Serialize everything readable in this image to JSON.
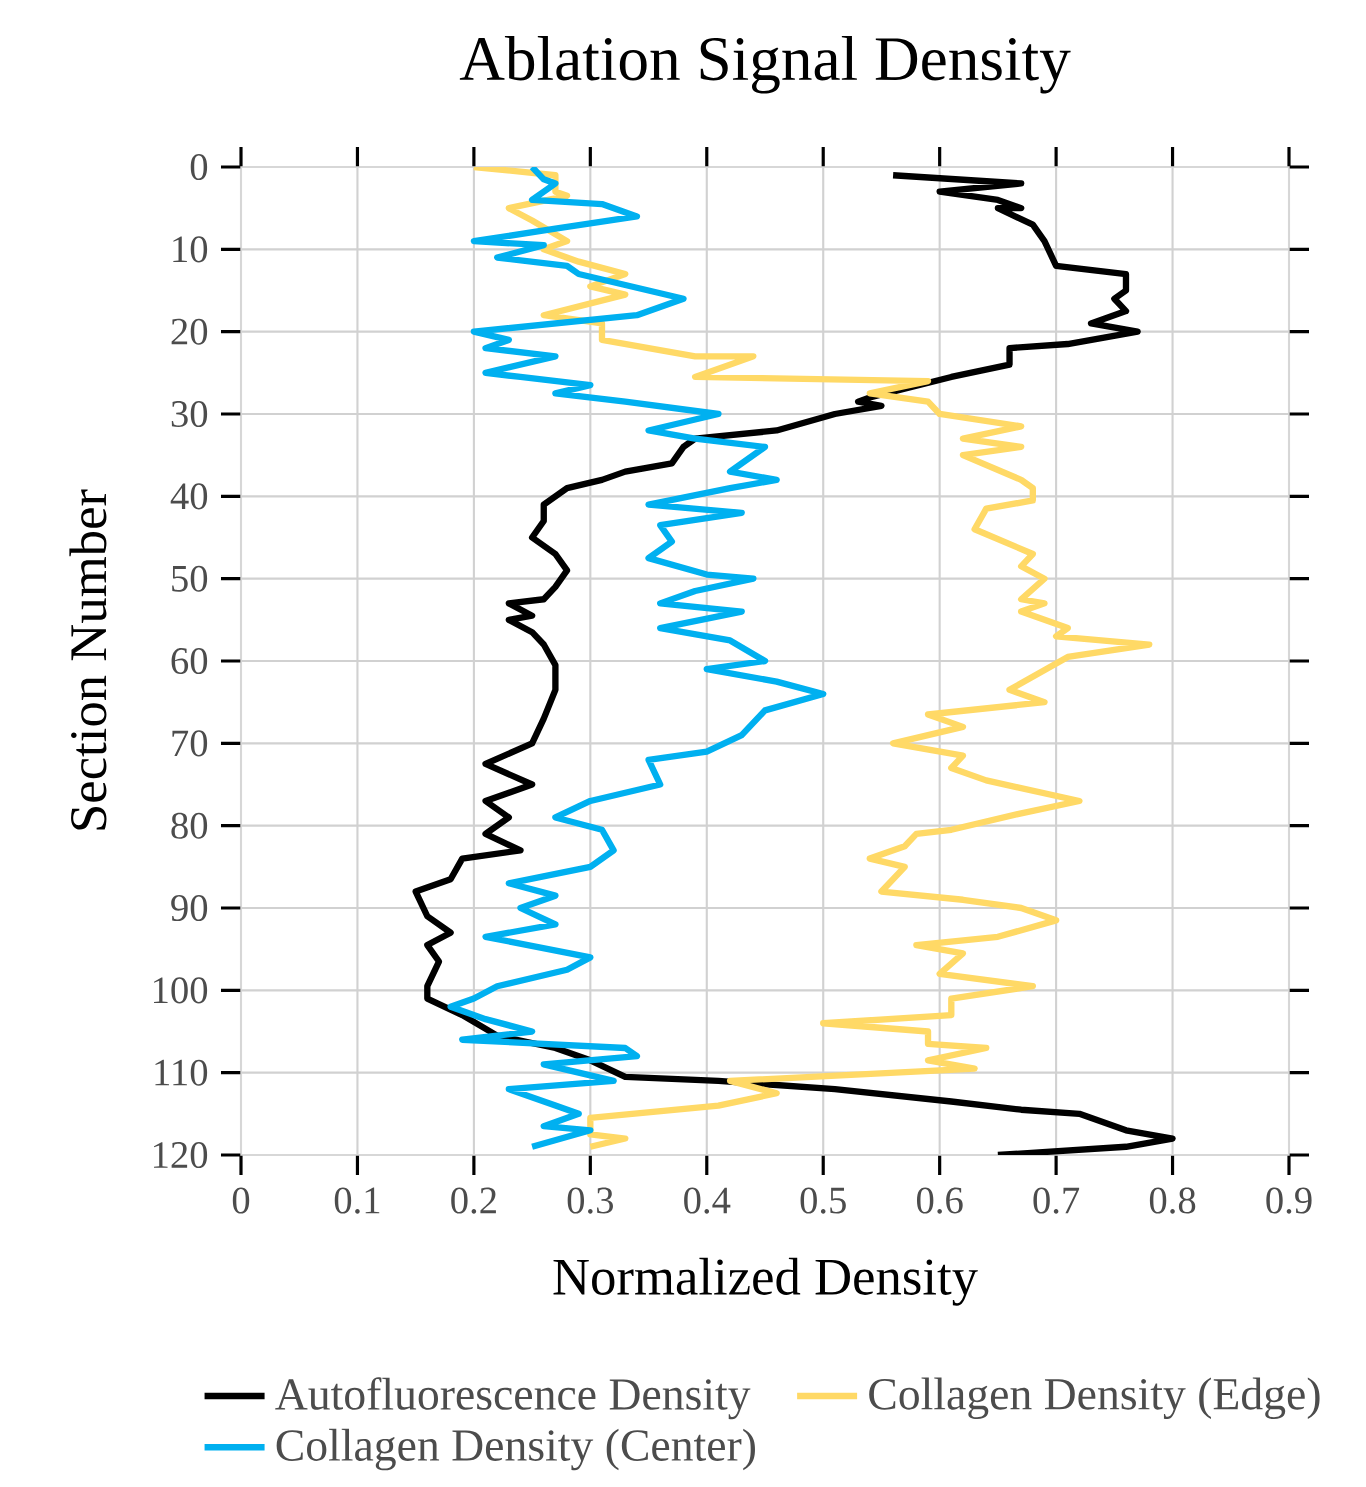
{
  "chart_data": {
    "type": "line",
    "title": "Ablation Signal Density",
    "xlabel": "Normalized Density",
    "ylabel": "Section Number",
    "xlim": [
      0,
      0.9
    ],
    "xticks": [
      0,
      0.1,
      0.2,
      0.3,
      0.4,
      0.5,
      0.6,
      0.7,
      0.8,
      0.9
    ],
    "ylim": [
      120,
      0
    ],
    "yticks": [
      0,
      10,
      20,
      30,
      40,
      50,
      60,
      70,
      80,
      90,
      100,
      110,
      120
    ],
    "grid": true,
    "legend": "bottom",
    "series": [
      {
        "name": "Autofluorescence Density",
        "color": "#000000",
        "x": [
          0.56,
          0.67,
          0.6,
          0.65,
          0.67,
          0.65,
          0.68,
          0.69,
          0.7,
          0.76,
          0.76,
          0.75,
          0.76,
          0.73,
          0.77,
          0.71,
          0.66,
          0.66,
          0.61,
          0.54,
          0.53,
          0.55,
          0.51,
          0.46,
          0.39,
          0.38,
          0.37,
          0.33,
          0.31,
          0.28,
          0.26,
          0.26,
          0.25,
          0.27,
          0.28,
          0.27,
          0.26,
          0.23,
          0.25,
          0.23,
          0.25,
          0.26,
          0.27,
          0.27,
          0.26,
          0.25,
          0.21,
          0.25,
          0.21,
          0.23,
          0.21,
          0.24,
          0.19,
          0.18,
          0.15,
          0.16,
          0.18,
          0.16,
          0.17,
          0.16,
          0.16,
          0.19,
          0.22,
          0.27,
          0.3,
          0.33,
          0.41,
          0.51,
          0.61,
          0.67,
          0.72,
          0.76,
          0.8,
          0.76,
          0.65
        ],
        "values": [
          1,
          2,
          3,
          4,
          5,
          5,
          7,
          9,
          12,
          13,
          15,
          16,
          17.5,
          19,
          20,
          21.5,
          22,
          24,
          25.5,
          28,
          28.5,
          29,
          30,
          32,
          33,
          34,
          36,
          37,
          38,
          39,
          41,
          43,
          45,
          47,
          49,
          51,
          52.5,
          53,
          54.5,
          55,
          56.5,
          58,
          60.5,
          63.5,
          67,
          70,
          72.5,
          75,
          77,
          79,
          81,
          83,
          84,
          86.5,
          88,
          91,
          93,
          94.5,
          96.5,
          99.5,
          101,
          103,
          105.5,
          107,
          108.5,
          110.5,
          111,
          112,
          113.5,
          114.5,
          115,
          117,
          118,
          119,
          120
        ]
      },
      {
        "name": "Collagen Density (Edge)",
        "color": "#ffd966",
        "x": [
          0.2,
          0.27,
          0.27,
          0.28,
          0.23,
          0.25,
          0.28,
          0.26,
          0.29,
          0.33,
          0.3,
          0.33,
          0.26,
          0.31,
          0.31,
          0.39,
          0.44,
          0.39,
          0.59,
          0.54,
          0.59,
          0.6,
          0.67,
          0.62,
          0.67,
          0.62,
          0.67,
          0.68,
          0.68,
          0.64,
          0.63,
          0.68,
          0.67,
          0.69,
          0.67,
          0.69,
          0.67,
          0.71,
          0.7,
          0.78,
          0.71,
          0.66,
          0.69,
          0.59,
          0.62,
          0.56,
          0.62,
          0.61,
          0.64,
          0.72,
          0.67,
          0.61,
          0.58,
          0.57,
          0.54,
          0.57,
          0.55,
          0.62,
          0.67,
          0.7,
          0.65,
          0.58,
          0.62,
          0.6,
          0.68,
          0.61,
          0.61,
          0.5,
          0.59,
          0.59,
          0.64,
          0.59,
          0.63,
          0.42,
          0.46,
          0.41,
          0.3,
          0.3,
          0.33,
          0.3
        ],
        "values": [
          0,
          1,
          3,
          3.5,
          5,
          6.5,
          9,
          10,
          11.5,
          13,
          14.5,
          15.5,
          18,
          19,
          21,
          23,
          23,
          25.5,
          26,
          27.5,
          28.5,
          30,
          31.5,
          33,
          34,
          35,
          38,
          39,
          40.5,
          41.5,
          44,
          47,
          48.5,
          50,
          52.5,
          53,
          54,
          56,
          57,
          58,
          59.5,
          63.5,
          65,
          66.5,
          68,
          70,
          71.5,
          73,
          74.5,
          77,
          78.5,
          80.5,
          81,
          82.5,
          84,
          85,
          88,
          89,
          90,
          91.5,
          93.5,
          94.5,
          95.5,
          98,
          99.5,
          101,
          103,
          104,
          105,
          106.5,
          107,
          108.5,
          109.5,
          111,
          112.5,
          114,
          115.5,
          117.5,
          118,
          119
        ]
      },
      {
        "name": "Collagen Density (Center)",
        "color": "#00b0f0",
        "x": [
          0.25,
          0.26,
          0.27,
          0.25,
          0.31,
          0.34,
          0.27,
          0.2,
          0.26,
          0.22,
          0.28,
          0.29,
          0.35,
          0.38,
          0.34,
          0.2,
          0.23,
          0.21,
          0.27,
          0.21,
          0.24,
          0.3,
          0.27,
          0.33,
          0.41,
          0.35,
          0.39,
          0.45,
          0.42,
          0.46,
          0.42,
          0.35,
          0.43,
          0.36,
          0.37,
          0.35,
          0.4,
          0.44,
          0.39,
          0.36,
          0.43,
          0.36,
          0.42,
          0.45,
          0.4,
          0.46,
          0.5,
          0.45,
          0.43,
          0.4,
          0.35,
          0.36,
          0.3,
          0.27,
          0.31,
          0.32,
          0.3,
          0.23,
          0.27,
          0.24,
          0.27,
          0.21,
          0.3,
          0.28,
          0.22,
          0.2,
          0.18,
          0.21,
          0.25,
          0.19,
          0.33,
          0.34,
          0.26,
          0.32,
          0.23,
          0.27,
          0.29,
          0.26,
          0.3,
          0.25
        ],
        "values": [
          0,
          1.5,
          2,
          4,
          4.5,
          6,
          7.5,
          9,
          9.5,
          11,
          12,
          13,
          15,
          16,
          18,
          20,
          21,
          22,
          23,
          25,
          25.5,
          26.5,
          27.5,
          28.5,
          30,
          32,
          33,
          34,
          37,
          38,
          39,
          41,
          42,
          43.5,
          45.5,
          47.5,
          49.5,
          50,
          51.5,
          53,
          54,
          56,
          57.5,
          60,
          61,
          62.5,
          64,
          66,
          69,
          71,
          72,
          75,
          77,
          79,
          80.5,
          83,
          85,
          87,
          88.5,
          90,
          92,
          93.5,
          96,
          97.5,
          99.5,
          101,
          102,
          103.5,
          105,
          106,
          107,
          108,
          109,
          111,
          112,
          114,
          115,
          116.5,
          117,
          119
        ]
      }
    ]
  }
}
